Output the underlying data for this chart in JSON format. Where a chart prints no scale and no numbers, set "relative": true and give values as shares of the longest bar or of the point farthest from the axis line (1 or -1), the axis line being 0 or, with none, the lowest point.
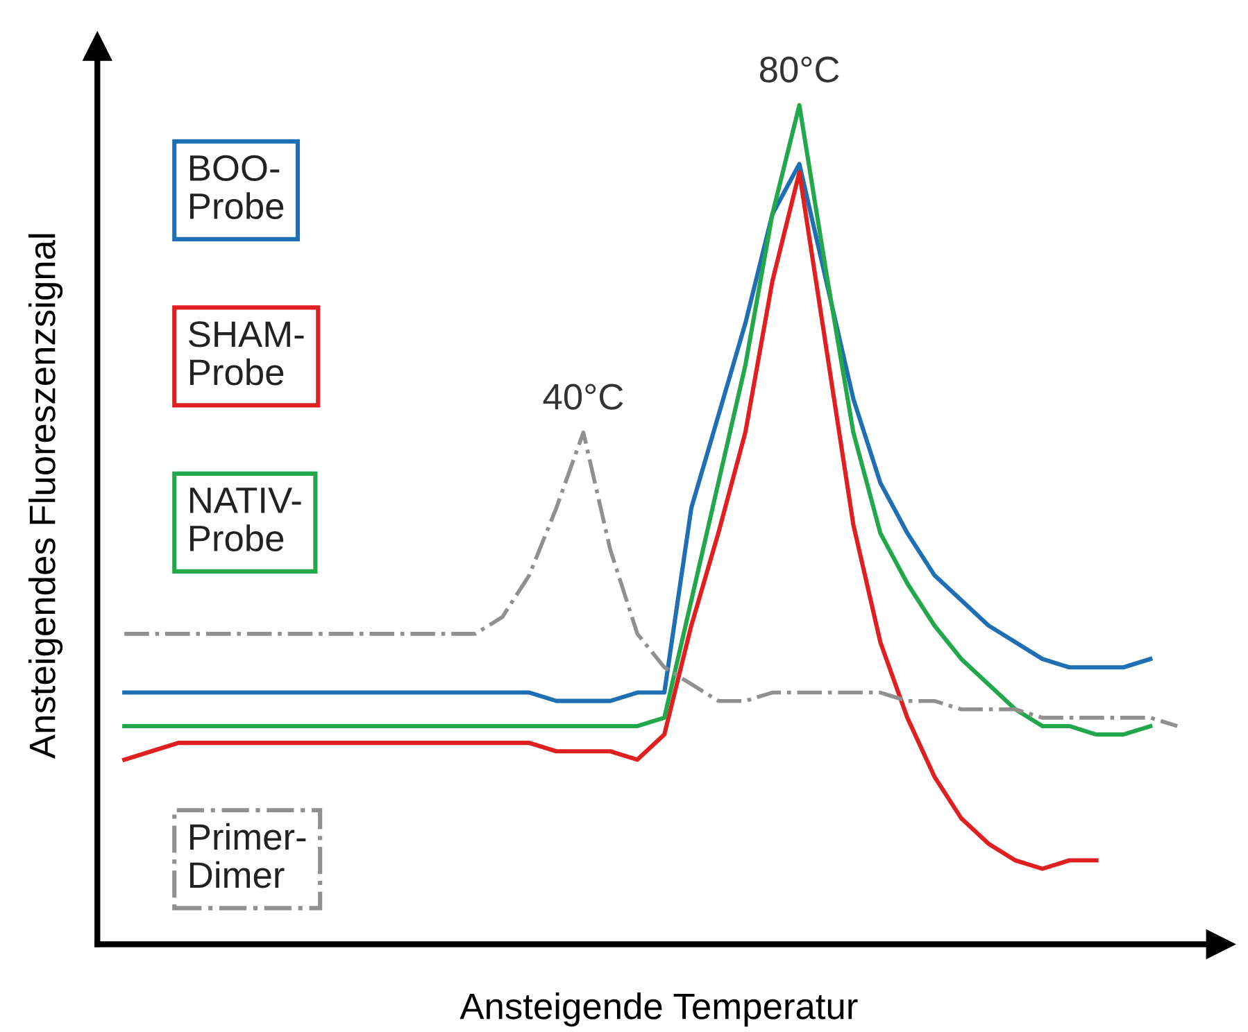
{
  "chart_data": {
    "type": "line",
    "relative": true,
    "xlabel": "Ansteigende Temperatur",
    "ylabel": "Ansteigendes Fluoreszenzsignal",
    "categories": [
      null,
      null,
      null,
      null,
      null,
      null,
      null,
      null,
      null,
      null,
      null,
      null,
      null,
      null,
      null,
      null,
      null,
      null,
      null,
      null,
      null,
      null,
      null,
      null,
      null,
      null,
      null,
      null,
      null,
      null,
      null,
      null,
      null,
      null,
      null,
      null,
      null,
      null,
      null,
      null
    ],
    "series": [
      {
        "name": "BOO-\nProbe",
        "color": "#1f6fb4",
        "line_style": "solid",
        "values": [
          0.3,
          0.3,
          0.3,
          0.3,
          0.3,
          0.3,
          0.3,
          0.3,
          0.3,
          0.3,
          0.3,
          0.3,
          0.3,
          0.3,
          0.3,
          0.3,
          0.29,
          0.29,
          0.29,
          0.3,
          0.3,
          0.52,
          0.63,
          0.74,
          0.87,
          0.93,
          0.79,
          0.65,
          0.55,
          0.49,
          0.44,
          0.41,
          0.38,
          0.36,
          0.34,
          0.33,
          0.33,
          0.33,
          0.34,
          null
        ]
      },
      {
        "name": "SHAM-\nProbe",
        "color": "#e02020",
        "line_style": "solid",
        "values": [
          0.22,
          0.23,
          0.24,
          0.24,
          0.24,
          0.24,
          0.24,
          0.24,
          0.24,
          0.24,
          0.24,
          0.24,
          0.24,
          0.24,
          0.24,
          0.24,
          0.23,
          0.23,
          0.23,
          0.22,
          0.25,
          0.38,
          0.49,
          0.61,
          0.79,
          0.92,
          0.71,
          0.5,
          0.36,
          0.27,
          0.2,
          0.15,
          0.12,
          0.1,
          0.09,
          0.1,
          0.1,
          null,
          null,
          null
        ]
      },
      {
        "name": "NATIV-\nProbe",
        "color": "#22a84a",
        "line_style": "solid",
        "values": [
          0.26,
          0.26,
          0.26,
          0.26,
          0.26,
          0.26,
          0.26,
          0.26,
          0.26,
          0.26,
          0.26,
          0.26,
          0.26,
          0.26,
          0.26,
          0.26,
          0.26,
          0.26,
          0.26,
          0.26,
          0.27,
          0.41,
          0.55,
          0.69,
          0.87,
          1.0,
          0.8,
          0.61,
          0.49,
          0.43,
          0.38,
          0.34,
          0.31,
          0.28,
          0.26,
          0.26,
          0.25,
          0.25,
          0.26,
          null
        ]
      },
      {
        "name": "Primer-\nDimer",
        "color": "#909090",
        "line_style": "dashdot",
        "values": [
          0.37,
          0.37,
          0.37,
          0.37,
          0.37,
          0.37,
          0.37,
          0.37,
          0.37,
          0.37,
          0.37,
          0.37,
          0.37,
          0.37,
          0.39,
          0.44,
          0.52,
          0.61,
          0.47,
          0.37,
          0.33,
          0.31,
          0.29,
          0.29,
          0.3,
          0.3,
          0.3,
          0.3,
          0.3,
          0.29,
          0.29,
          0.28,
          0.28,
          0.28,
          0.27,
          0.27,
          0.27,
          0.27,
          0.27,
          0.26
        ]
      }
    ],
    "annotations": [
      {
        "text": "80°C",
        "y": 1.0
      },
      {
        "text": "40°C",
        "y": 0.61
      }
    ],
    "legend": "left",
    "marker": "none"
  }
}
